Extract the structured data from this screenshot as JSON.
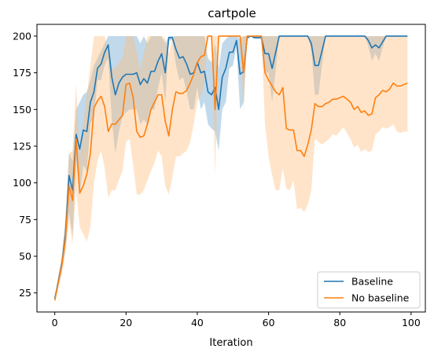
{
  "chart_data": {
    "type": "line",
    "title": "cartpole",
    "xlabel": "Iteration",
    "ylabel": "",
    "xlim": [
      -5,
      104
    ],
    "ylim": [
      12,
      208
    ],
    "xticks": [
      0,
      20,
      40,
      60,
      80,
      100
    ],
    "yticks": [
      25,
      50,
      75,
      100,
      125,
      150,
      175,
      200
    ],
    "grid": false,
    "legend_position": "lower right",
    "series": [
      {
        "name": "Baseline",
        "color": "#1f77b4",
        "band_color": "#1f77b4",
        "x": [
          0,
          1,
          2,
          3,
          4,
          5,
          6,
          7,
          8,
          9,
          10,
          11,
          12,
          13,
          14,
          15,
          16,
          17,
          18,
          19,
          20,
          21,
          22,
          23,
          24,
          25,
          26,
          27,
          28,
          29,
          30,
          31,
          32,
          33,
          34,
          35,
          36,
          37,
          38,
          39,
          40,
          41,
          42,
          43,
          44,
          45,
          46,
          47,
          48,
          49,
          50,
          51,
          52,
          53,
          54,
          55,
          56,
          57,
          58,
          59,
          60,
          61,
          62,
          63,
          64,
          65,
          66,
          67,
          68,
          69,
          70,
          71,
          72,
          73,
          74,
          75,
          76,
          77,
          78,
          79,
          80,
          81,
          82,
          83,
          84,
          85,
          86,
          87,
          88,
          89,
          90,
          91,
          92,
          93,
          94,
          95,
          96,
          97,
          98,
          99
        ],
        "values": [
          21,
          33,
          45,
          65,
          105,
          95,
          133,
          123,
          136,
          135,
          155,
          162,
          178,
          181,
          189,
          194,
          172,
          160,
          168,
          172,
          174,
          174,
          174,
          175,
          167,
          171,
          168,
          176,
          176,
          183,
          188,
          175,
          199,
          199,
          191,
          185,
          186,
          181,
          174,
          175,
          182,
          175,
          176,
          162,
          160,
          165,
          150,
          172,
          178,
          189,
          189,
          197,
          174,
          176,
          199,
          200,
          199,
          199,
          199,
          188,
          188,
          178,
          189,
          200,
          200,
          200,
          200,
          200,
          200,
          200,
          200,
          200,
          195,
          180,
          180,
          190,
          200,
          200,
          200,
          200,
          200,
          200,
          200,
          200,
          200,
          200,
          200,
          200,
          197,
          192,
          194,
          192,
          196,
          200,
          200,
          200,
          200,
          200,
          200,
          200
        ],
        "upper": [
          21,
          36,
          50,
          75,
          120,
          115,
          150,
          155,
          160,
          162,
          170,
          180,
          185,
          190,
          195,
          200,
          200,
          200,
          200,
          200,
          200,
          200,
          200,
          200,
          195,
          200,
          195,
          200,
          200,
          200,
          200,
          195,
          200,
          200,
          200,
          200,
          200,
          200,
          200,
          200,
          200,
          200,
          200,
          185,
          182,
          195,
          178,
          195,
          198,
          200,
          200,
          200,
          198,
          200,
          200,
          200,
          200,
          200,
          200,
          200,
          200,
          200,
          200,
          200,
          200,
          200,
          200,
          200,
          200,
          200,
          200,
          200,
          200,
          200,
          200,
          200,
          200,
          200,
          200,
          200,
          200,
          200,
          200,
          200,
          200,
          200,
          200,
          200,
          200,
          200,
          200,
          200,
          200,
          200,
          200,
          200,
          200,
          200,
          200,
          200
        ],
        "lower": [
          20,
          30,
          40,
          55,
          80,
          64,
          115,
          92,
          112,
          108,
          140,
          145,
          170,
          170,
          180,
          185,
          143,
          120,
          135,
          145,
          148,
          150,
          150,
          150,
          140,
          143,
          140,
          150,
          150,
          165,
          175,
          155,
          197,
          197,
          180,
          170,
          172,
          162,
          150,
          150,
          165,
          150,
          155,
          140,
          137,
          135,
          122,
          150,
          155,
          178,
          180,
          193,
          150,
          155,
          197,
          200,
          198,
          198,
          198,
          175,
          175,
          155,
          177,
          200,
          200,
          200,
          200,
          200,
          200,
          200,
          200,
          200,
          190,
          160,
          160,
          180,
          200,
          200,
          200,
          200,
          200,
          200,
          200,
          200,
          200,
          200,
          200,
          200,
          193,
          183,
          188,
          183,
          192,
          200,
          200,
          200,
          200,
          200,
          200,
          200
        ]
      },
      {
        "name": "No baseline",
        "color": "#ff7f0e",
        "band_color": "#ffbb78",
        "x": [
          0,
          1,
          2,
          3,
          4,
          5,
          6,
          7,
          8,
          9,
          10,
          11,
          12,
          13,
          14,
          15,
          16,
          17,
          18,
          19,
          20,
          21,
          22,
          23,
          24,
          25,
          26,
          27,
          28,
          29,
          30,
          31,
          32,
          33,
          34,
          35,
          36,
          37,
          38,
          39,
          40,
          41,
          42,
          43,
          44,
          45,
          46,
          47,
          48,
          49,
          50,
          51,
          52,
          53,
          54,
          55,
          56,
          57,
          58,
          59,
          60,
          61,
          62,
          63,
          64,
          65,
          66,
          67,
          68,
          69,
          70,
          71,
          72,
          73,
          74,
          75,
          76,
          77,
          78,
          79,
          80,
          81,
          82,
          83,
          84,
          85,
          86,
          87,
          88,
          89,
          90,
          91,
          92,
          93,
          94,
          95,
          96,
          97,
          98,
          99
        ],
        "values": [
          20,
          32,
          44,
          62,
          98,
          88,
          130,
          93,
          98,
          106,
          120,
          151,
          156,
          159,
          152,
          135,
          140,
          140,
          143,
          146,
          167,
          168,
          158,
          135,
          131,
          132,
          140,
          150,
          155,
          160,
          160,
          142,
          132,
          150,
          162,
          161,
          161,
          163,
          168,
          174,
          182,
          186,
          187,
          200,
          200,
          150,
          200,
          200,
          200,
          200,
          200,
          200,
          200,
          175,
          200,
          200,
          200,
          200,
          200,
          175,
          170,
          166,
          162,
          160,
          165,
          137,
          136,
          136,
          122,
          122,
          118,
          126,
          136,
          154,
          152,
          152,
          154,
          155,
          157,
          157,
          158,
          159,
          157,
          155,
          150,
          152,
          148,
          149,
          146,
          147,
          158,
          160,
          163,
          162,
          164,
          168,
          166,
          166,
          167,
          168
        ],
        "upper": [
          22,
          37,
          50,
          76,
          120,
          122,
          168,
          116,
          142,
          160,
          180,
          200,
          200,
          200,
          200,
          190,
          178,
          178,
          182,
          185,
          200,
          200,
          200,
          190,
          176,
          188,
          200,
          200,
          200,
          200,
          200,
          198,
          188,
          198,
          200,
          200,
          200,
          200,
          200,
          200,
          200,
          200,
          200,
          200,
          200,
          200,
          200,
          200,
          200,
          200,
          200,
          200,
          200,
          200,
          200,
          200,
          200,
          200,
          200,
          200,
          200,
          200,
          200,
          200,
          200,
          200,
          200,
          200,
          200,
          200,
          200,
          200,
          200,
          200,
          200,
          200,
          200,
          200,
          200,
          200,
          200,
          200,
          200,
          200,
          200,
          200,
          200,
          200,
          200,
          200,
          200,
          200,
          200,
          200,
          200,
          200,
          200,
          200,
          200,
          200
        ],
        "lower": [
          18,
          28,
          38,
          52,
          75,
          58,
          95,
          70,
          65,
          60,
          70,
          100,
          115,
          122,
          110,
          90,
          95,
          95,
          102,
          108,
          128,
          130,
          112,
          92,
          92,
          95,
          102,
          108,
          114,
          122,
          118,
          98,
          92,
          104,
          118,
          118,
          120,
          122,
          128,
          140,
          155,
          160,
          168,
          200,
          200,
          105,
          200,
          200,
          200,
          200,
          200,
          200,
          200,
          148,
          200,
          200,
          200,
          200,
          200,
          140,
          118,
          105,
          95,
          95,
          110,
          96,
          95,
          102,
          82,
          83,
          80,
          85,
          95,
          130,
          128,
          126,
          128,
          130,
          133,
          132,
          135,
          138,
          134,
          130,
          124,
          126,
          121,
          123,
          121,
          122,
          133,
          135,
          138,
          137,
          138,
          140,
          135,
          134,
          135,
          135
        ]
      }
    ]
  }
}
